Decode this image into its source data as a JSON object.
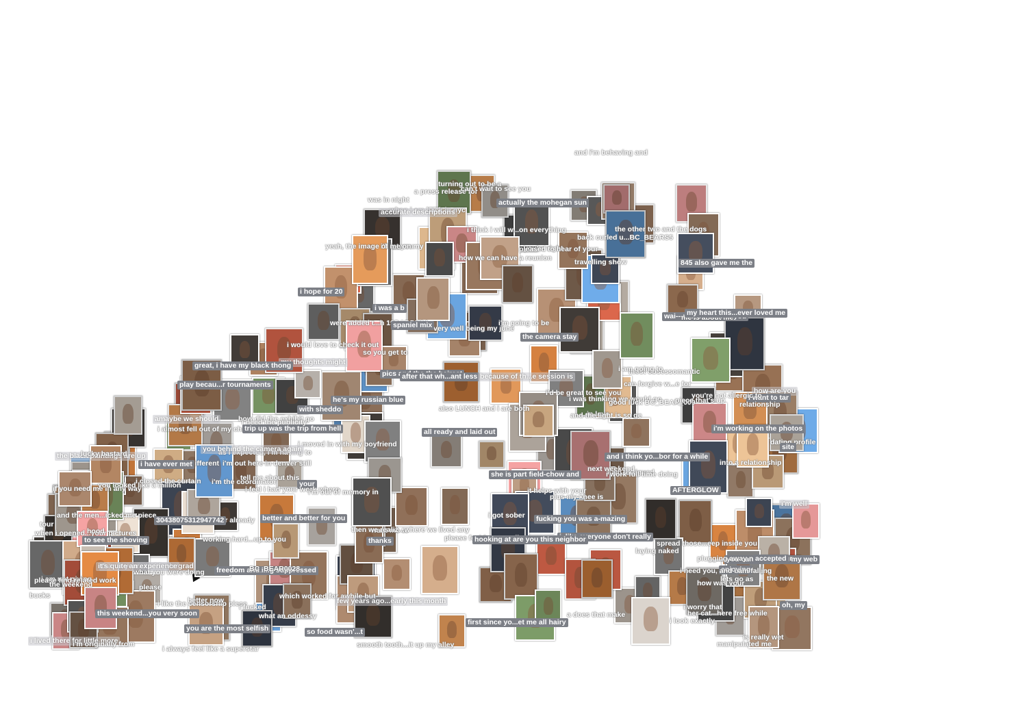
{
  "captions": [
    {
      "text": "i like the censorship piece",
      "style": "ghost"
    },
    {
      "text": "and the men...icked me piece",
      "style": "ghost"
    },
    {
      "text": "if you need me in any way",
      "style": "ghost"
    },
    {
      "text": "please feel free to call",
      "style": "ghost"
    },
    {
      "text": "you looked like a million",
      "style": "ghost"
    },
    {
      "text": "bucks",
      "style": "ghost"
    },
    {
      "text": "plus my knee is",
      "style": "ghost"
    },
    {
      "text": "i think i will w...on everything",
      "style": "ghost"
    },
    {
      "text": "is it different",
      "style": "ghost"
    },
    {
      "text": "laying naked",
      "style": "ghost"
    },
    {
      "text": "how was your",
      "style": "ghost"
    },
    {
      "text": "i worry that",
      "style": "ghost"
    },
    {
      "text": "i closed the curtain",
      "style": "ghost"
    },
    {
      "text": "please",
      "style": "ghost"
    },
    {
      "text": "i'm out here in denver still",
      "style": "ghost"
    },
    {
      "text": "plugging away national tour",
      "style": "ghost"
    },
    {
      "text": "how we can have a reunion",
      "style": "ghost"
    },
    {
      "text": "you're right",
      "style": "ghost"
    },
    {
      "text": "when i am back in nyc",
      "style": "ghost"
    },
    {
      "text": "very well being my june",
      "style": "ghost"
    },
    {
      "text": "as i expected, i'm having to",
      "style": "ghost"
    },
    {
      "text": "the weekend",
      "style": "ghost"
    },
    {
      "text": "i'm the coordinator",
      "style": "ghost"
    },
    {
      "text": "like him",
      "style": "ghost"
    },
    {
      "text": "i am intrigued",
      "style": "ghost"
    },
    {
      "text": "lets go as",
      "style": "ghost"
    },
    {
      "text": "i almost fell out of my chair",
      "style": "ghost"
    },
    {
      "text": "when i opened...your pictures",
      "style": "ghost"
    },
    {
      "text": "i work full time doing",
      "style": "ghost"
    },
    {
      "text": "i'm well",
      "style": "light"
    },
    {
      "text": "how are you",
      "style": "light"
    },
    {
      "text": "amaybe we should",
      "style": "light"
    },
    {
      "text": "tour",
      "style": "ghost"
    },
    {
      "text": "845 also gave me the",
      "style": "dark"
    },
    {
      "text": "freedom and i...g suppressed",
      "style": "dark"
    },
    {
      "text": "after that wh...ant less",
      "style": "dark"
    },
    {
      "text": "to see the shoving",
      "style": "dark"
    },
    {
      "text": "your",
      "style": "dark"
    },
    {
      "text": "i, like everyone don't really",
      "style": "dark"
    },
    {
      "text": "fucking you was a-mazing",
      "style": "dark"
    },
    {
      "text": "hooking at are you this neighbor",
      "style": "dark"
    },
    {
      "text": "i'm working on the photos",
      "style": "dark"
    },
    {
      "text": "this weekend...you very soon",
      "style": "dark"
    },
    {
      "text": "thanks",
      "style": "dark"
    },
    {
      "text": "he's my russian blue",
      "style": "dark"
    },
    {
      "text": "i was a b",
      "style": "dark"
    },
    {
      "text": "accepted",
      "style": "dark"
    },
    {
      "text": "my thoughts might",
      "style": "light"
    },
    {
      "text": "the black paintings are up",
      "style": "light"
    },
    {
      "text": "few years ago...early this month",
      "style": "light"
    },
    {
      "text": "i lived there for little more",
      "style": "light"
    },
    {
      "text": "than a year...t of undergrad",
      "style": "light"
    },
    {
      "text": "30438075312947742",
      "style": "dark"
    },
    {
      "text": "first since yo...et me all hairy",
      "style": "dark"
    },
    {
      "text": "wai---maybe feather you",
      "style": "dark"
    },
    {
      "text": "so food wasn'...t",
      "style": "dark"
    },
    {
      "text": "pics and the the hairest",
      "style": "dark"
    },
    {
      "text": "actually the mohegan sun",
      "style": "dark"
    },
    {
      "text": "trip up was the trip from hell",
      "style": "dark"
    },
    {
      "text": "and i think yo...bor for a while",
      "style": "dark"
    },
    {
      "text": "the camera stay",
      "style": "dark"
    },
    {
      "text": "you are the most selfish",
      "style": "dark"
    },
    {
      "text": "enjoying",
      "style": "dark"
    },
    {
      "text": "i have ever met",
      "style": "dark"
    },
    {
      "text": "i hope for 20",
      "style": "dark"
    },
    {
      "text": "i want to tar",
      "style": "dark"
    },
    {
      "text": "with sheddo",
      "style": "dark"
    },
    {
      "text": "oh, my",
      "style": "dark"
    },
    {
      "text": "great, i have my black thong",
      "style": "dark"
    },
    {
      "text": "all ready and laid out",
      "style": "dark"
    },
    {
      "text": "better and better for you",
      "style": "dark"
    },
    {
      "text": "you can check out my web",
      "style": "dark"
    },
    {
      "text": "site",
      "style": "dark"
    },
    {
      "text": "she is part field-chow and",
      "style": "dark"
    },
    {
      "text": "spaniel mix",
      "style": "dark"
    },
    {
      "text": "AFTERGLOW",
      "style": "dark"
    },
    {
      "text": "play becau...r tournaments",
      "style": "dark"
    },
    {
      "text": "my heart this...ever loved me",
      "style": "dark"
    },
    {
      "text": "accurate descriptions",
      "style": "light"
    },
    {
      "text": "you behind the camera again",
      "style": "light"
    },
    {
      "text": "because of th...e session is",
      "style": "light"
    },
    {
      "text": "it's quite an experience",
      "style": "light"
    },
    {
      "text": "i am not giving",
      "style": "ghost"
    },
    {
      "text": "can forgive w...e for",
      "style": "ghost"
    },
    {
      "text": "i need you, and i am falling",
      "style": "ghost"
    },
    {
      "text": "and i'm behaving and",
      "style": "ghost"
    },
    {
      "text": "in love",
      "style": "ghost"
    },
    {
      "text": "working hard...up to you",
      "style": "ghost"
    },
    {
      "text": "a does that make",
      "style": "ghost"
    },
    {
      "text": "i got sober",
      "style": "ghost"
    },
    {
      "text": "tell me about this",
      "style": "ghost"
    },
    {
      "text": "conversation...other already",
      "style": "ghost"
    },
    {
      "text": "i'd be great to see you",
      "style": "ghost"
    },
    {
      "text": "i feel i had your work where",
      "style": "ghost"
    },
    {
      "text": "i would love to check it out",
      "style": "ghost"
    },
    {
      "text": "what an oddessy",
      "style": "ghost"
    },
    {
      "text": "turning out to be a",
      "style": "ghost"
    },
    {
      "text": "a press release for",
      "style": "ghost"
    },
    {
      "text": "i'm going to be",
      "style": "ghost"
    },
    {
      "text": "i need the publicity",
      "style": "ghost"
    },
    {
      "text": "you're not allergic to",
      "style": "ghost"
    },
    {
      "text": "manipulated me",
      "style": "ghost"
    },
    {
      "text": "and the light is so ge",
      "style": "ghost"
    },
    {
      "text": "i am going to",
      "style": "ghost"
    },
    {
      "text": "i'll let you",
      "style": "ghost"
    },
    {
      "text": "i always feel like a superstar",
      "style": "ghost"
    },
    {
      "text": "i moved in with my boyfriend",
      "style": "ghost"
    },
    {
      "text": "smooth tooth...it up my alley",
      "style": "ghost"
    },
    {
      "text": "i look exactly",
      "style": "ghost"
    },
    {
      "text": "the new",
      "style": "ghost"
    },
    {
      "text": "better now",
      "style": "ghost"
    },
    {
      "text": "please find related work",
      "style": "ghost"
    },
    {
      "text": "i was thinking we would go",
      "style": "ghost"
    },
    {
      "text": "her cat...here free while",
      "style": "ghost"
    },
    {
      "text": "me is about me",
      "style": "ghost"
    },
    {
      "text": "i'm originally from",
      "style": "ghost"
    },
    {
      "text": "piece that's up",
      "style": "ghost"
    },
    {
      "text": "travelling show",
      "style": "ghost"
    },
    {
      "text": "hood",
      "style": "ghost"
    },
    {
      "text": "BC_BEAR0028",
      "style": "ghost"
    },
    {
      "text": "good luck BC_BEAR_009",
      "style": "ghost"
    },
    {
      "text": "lucky bastard",
      "style": "ghost"
    },
    {
      "text": "was in night",
      "style": "ghost"
    },
    {
      "text": "i'm out of memory in",
      "style": "ghost"
    },
    {
      "text": "how did the exhibit go",
      "style": "ghost"
    },
    {
      "text": "also LUNCH and i are both",
      "style": "ghost"
    },
    {
      "text": "it helps with your",
      "style": "ghost"
    },
    {
      "text": "dating profile",
      "style": "ghost"
    },
    {
      "text": "into a relationship",
      "style": "ghost"
    },
    {
      "text": "is really wet",
      "style": "ghost"
    },
    {
      "text": "yeah, the image of me on my",
      "style": "ghost"
    },
    {
      "text": "back curled u...BC_BEARS5",
      "style": "ghost"
    },
    {
      "text": "want me to",
      "style": "ghost"
    },
    {
      "text": "the other two and the dogs",
      "style": "ghost"
    },
    {
      "text": "which worked for awhile but",
      "style": "ghost"
    },
    {
      "text": "were added t...h 19DADDY24",
      "style": "ghost"
    },
    {
      "text": "then we realiz...where we lived any",
      "style": "ghost"
    },
    {
      "text": "spread those...eep inside you",
      "style": "ghost"
    },
    {
      "text": "what you were doing",
      "style": "ghost"
    },
    {
      "text": "can't wait to see you",
      "style": "ghost"
    },
    {
      "text": "pleased to hear of your",
      "style": "ghost"
    },
    {
      "text": "most obsessomantic",
      "style": "ghost"
    },
    {
      "text": "so you get to",
      "style": "ghost"
    },
    {
      "text": "relationship",
      "style": "ghost"
    },
    {
      "text": "next weekend",
      "style": "ghost"
    },
    {
      "text": "i fucked",
      "style": "ghost"
    }
  ],
  "thumbnails": [
    {
      "name": "photo-portrait-white-shirt",
      "color": "#b8b2ac"
    },
    {
      "name": "photo-couple",
      "color": "#7d6552"
    },
    {
      "name": "photo-standing-nude",
      "color": "#a58a74"
    },
    {
      "name": "photo-tattoo",
      "color": "#8f8880"
    },
    {
      "name": "photo-seated",
      "color": "#9a7a62"
    },
    {
      "name": "photo-red-shirt",
      "color": "#c05a43"
    },
    {
      "name": "photo-bald-man",
      "color": "#a67c5c"
    },
    {
      "name": "photo-blue-sky",
      "color": "#5f93c8"
    },
    {
      "name": "photo-bw-1",
      "color": "#6e6e6e"
    },
    {
      "name": "photo-bw-2",
      "color": "#4a4a4a"
    },
    {
      "name": "photo-beach",
      "color": "#c7a57f"
    },
    {
      "name": "photo-orange-bg",
      "color": "#c97a3c"
    },
    {
      "name": "photo-bearded",
      "color": "#8d6e57"
    },
    {
      "name": "photo-reclining",
      "color": "#b39276"
    },
    {
      "name": "photo-suit",
      "color": "#3c4452"
    },
    {
      "name": "photo-pink",
      "color": "#d08a8a"
    },
    {
      "name": "photo-dark-room",
      "color": "#3f3a36"
    },
    {
      "name": "photo-outdoor",
      "color": "#6f8a5c"
    },
    {
      "name": "photo-painting",
      "color": "#c98850"
    },
    {
      "name": "photo-bed",
      "color": "#c8beb3"
    }
  ]
}
